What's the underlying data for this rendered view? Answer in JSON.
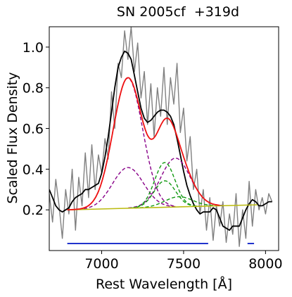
{
  "chart_data": {
    "type": "line",
    "title": "SN 2005cf  +319d",
    "xlabel": "Rest Wavelength [Å]",
    "ylabel": "Scaled Flux Density",
    "xlim": [
      6680,
      8080
    ],
    "ylim": [
      0.0,
      1.1
    ],
    "xticks": [
      7000,
      7500,
      8000
    ],
    "xtick_labels": [
      "7000",
      "7500",
      "8000"
    ],
    "yticks": [
      0.2,
      0.4,
      0.6,
      0.8,
      1.0
    ],
    "ytick_labels": [
      "0.2",
      "0.4",
      "0.6",
      "0.8",
      "1.0"
    ],
    "grid": false,
    "legend": null,
    "colors": {
      "raw": "#808080",
      "smoothed": "#000000",
      "fit": "#ee1111",
      "component_a": "#880088",
      "component_b": "#119911",
      "continuum": "#bbbb11",
      "ranges": "#2233cc"
    },
    "series": [
      {
        "role": "raw-spectrum",
        "color": "#808080",
        "x": [
          6680,
          6700,
          6720,
          6740,
          6760,
          6780,
          6800,
          6820,
          6840,
          6860,
          6880,
          6900,
          6920,
          6940,
          6960,
          6980,
          7000,
          7020,
          7040,
          7060,
          7080,
          7100,
          7120,
          7140,
          7160,
          7180,
          7200,
          7220,
          7240,
          7260,
          7280,
          7300,
          7320,
          7340,
          7360,
          7380,
          7400,
          7420,
          7440,
          7460,
          7480,
          7500,
          7520,
          7540,
          7560,
          7580,
          7600,
          7620,
          7640,
          7660,
          7680,
          7700,
          7720,
          7740,
          7760,
          7780,
          7800,
          7820,
          7840,
          7860,
          7880,
          7900,
          7920,
          7940,
          7960,
          7980,
          8000,
          8020,
          8040
        ],
        "y": [
          0.28,
          0.14,
          0.35,
          0.22,
          0.06,
          0.3,
          0.18,
          0.4,
          0.1,
          0.36,
          0.22,
          0.48,
          0.26,
          0.52,
          0.3,
          0.47,
          0.38,
          0.55,
          0.45,
          0.78,
          0.6,
          0.92,
          0.85,
          1.08,
          0.94,
          1.1,
          0.88,
          1.02,
          0.75,
          0.88,
          0.62,
          0.82,
          0.56,
          0.8,
          0.66,
          0.9,
          0.62,
          0.85,
          0.72,
          0.92,
          0.58,
          0.7,
          0.44,
          0.56,
          0.3,
          0.4,
          0.18,
          0.3,
          0.1,
          0.26,
          0.05,
          0.22,
          0.12,
          0.24,
          0.04,
          0.18,
          0.08,
          0.28,
          0.02,
          0.2,
          0.06,
          0.34,
          0.12,
          0.3,
          0.2,
          0.26,
          0.18,
          0.28,
          0.24
        ]
      },
      {
        "role": "smoothed-spectrum",
        "color": "#000000",
        "x": [
          6680,
          6700,
          6720,
          6740,
          6760,
          6780,
          6800,
          6820,
          6840,
          6860,
          6880,
          6900,
          6920,
          6940,
          6960,
          6980,
          7000,
          7020,
          7040,
          7060,
          7080,
          7100,
          7120,
          7140,
          7160,
          7180,
          7200,
          7220,
          7240,
          7260,
          7280,
          7300,
          7320,
          7340,
          7360,
          7380,
          7400,
          7420,
          7440,
          7460,
          7480,
          7500,
          7520,
          7540,
          7560,
          7580,
          7600,
          7620,
          7640,
          7660,
          7680,
          7700,
          7720,
          7740,
          7760,
          7780,
          7800,
          7820,
          7840,
          7860,
          7880,
          7900,
          7920,
          7940,
          7960,
          7980,
          8000,
          8020,
          8040
        ],
        "y": [
          0.3,
          0.26,
          0.22,
          0.2,
          0.19,
          0.2,
          0.21,
          0.24,
          0.26,
          0.27,
          0.28,
          0.3,
          0.3,
          0.31,
          0.32,
          0.33,
          0.38,
          0.46,
          0.56,
          0.68,
          0.8,
          0.9,
          0.95,
          0.98,
          0.97,
          0.94,
          0.86,
          0.78,
          0.7,
          0.65,
          0.63,
          0.64,
          0.66,
          0.68,
          0.69,
          0.69,
          0.68,
          0.66,
          0.62,
          0.55,
          0.47,
          0.39,
          0.32,
          0.27,
          0.23,
          0.2,
          0.18,
          0.19,
          0.19,
          0.19,
          0.21,
          0.2,
          0.16,
          0.12,
          0.11,
          0.1,
          0.12,
          0.12,
          0.12,
          0.16,
          0.2,
          0.23,
          0.25,
          0.24,
          0.22,
          0.22,
          0.23,
          0.24,
          0.24
        ]
      }
    ],
    "gaussians": [
      {
        "role": "component-a-main",
        "color": "#880088",
        "center": 7160,
        "sigma": 90,
        "amplitude": 0.64,
        "dashed": true
      },
      {
        "role": "component-a-low",
        "color": "#880088",
        "center": 7160,
        "sigma": 95,
        "amplitude": 0.2,
        "dashed": true
      },
      {
        "role": "component-a-red",
        "color": "#880088",
        "center": 7450,
        "sigma": 90,
        "amplitude": 0.24,
        "dashed": true
      },
      {
        "role": "component-b-main",
        "color": "#119911",
        "center": 7385,
        "sigma": 62,
        "amplitude": 0.22,
        "dashed": true
      },
      {
        "role": "component-b-low",
        "color": "#119911",
        "center": 7385,
        "sigma": 65,
        "amplitude": 0.13,
        "dashed": true
      },
      {
        "role": "component-b-tail",
        "color": "#119911",
        "center": 7470,
        "sigma": 85,
        "amplitude": 0.05,
        "dashed": true
      }
    ],
    "continuum": {
      "color": "#bbbb11",
      "x": [
        6790,
        7950
      ],
      "y": [
        0.2,
        0.225
      ]
    },
    "fit_range": [
      6790,
      7720
    ],
    "ranges": [
      {
        "color": "#2233cc",
        "x": [
          6790,
          7650
        ],
        "y": -0.06
      },
      {
        "color": "#2233cc",
        "x": [
          7890,
          7930
        ],
        "y": -0.06
      }
    ]
  }
}
